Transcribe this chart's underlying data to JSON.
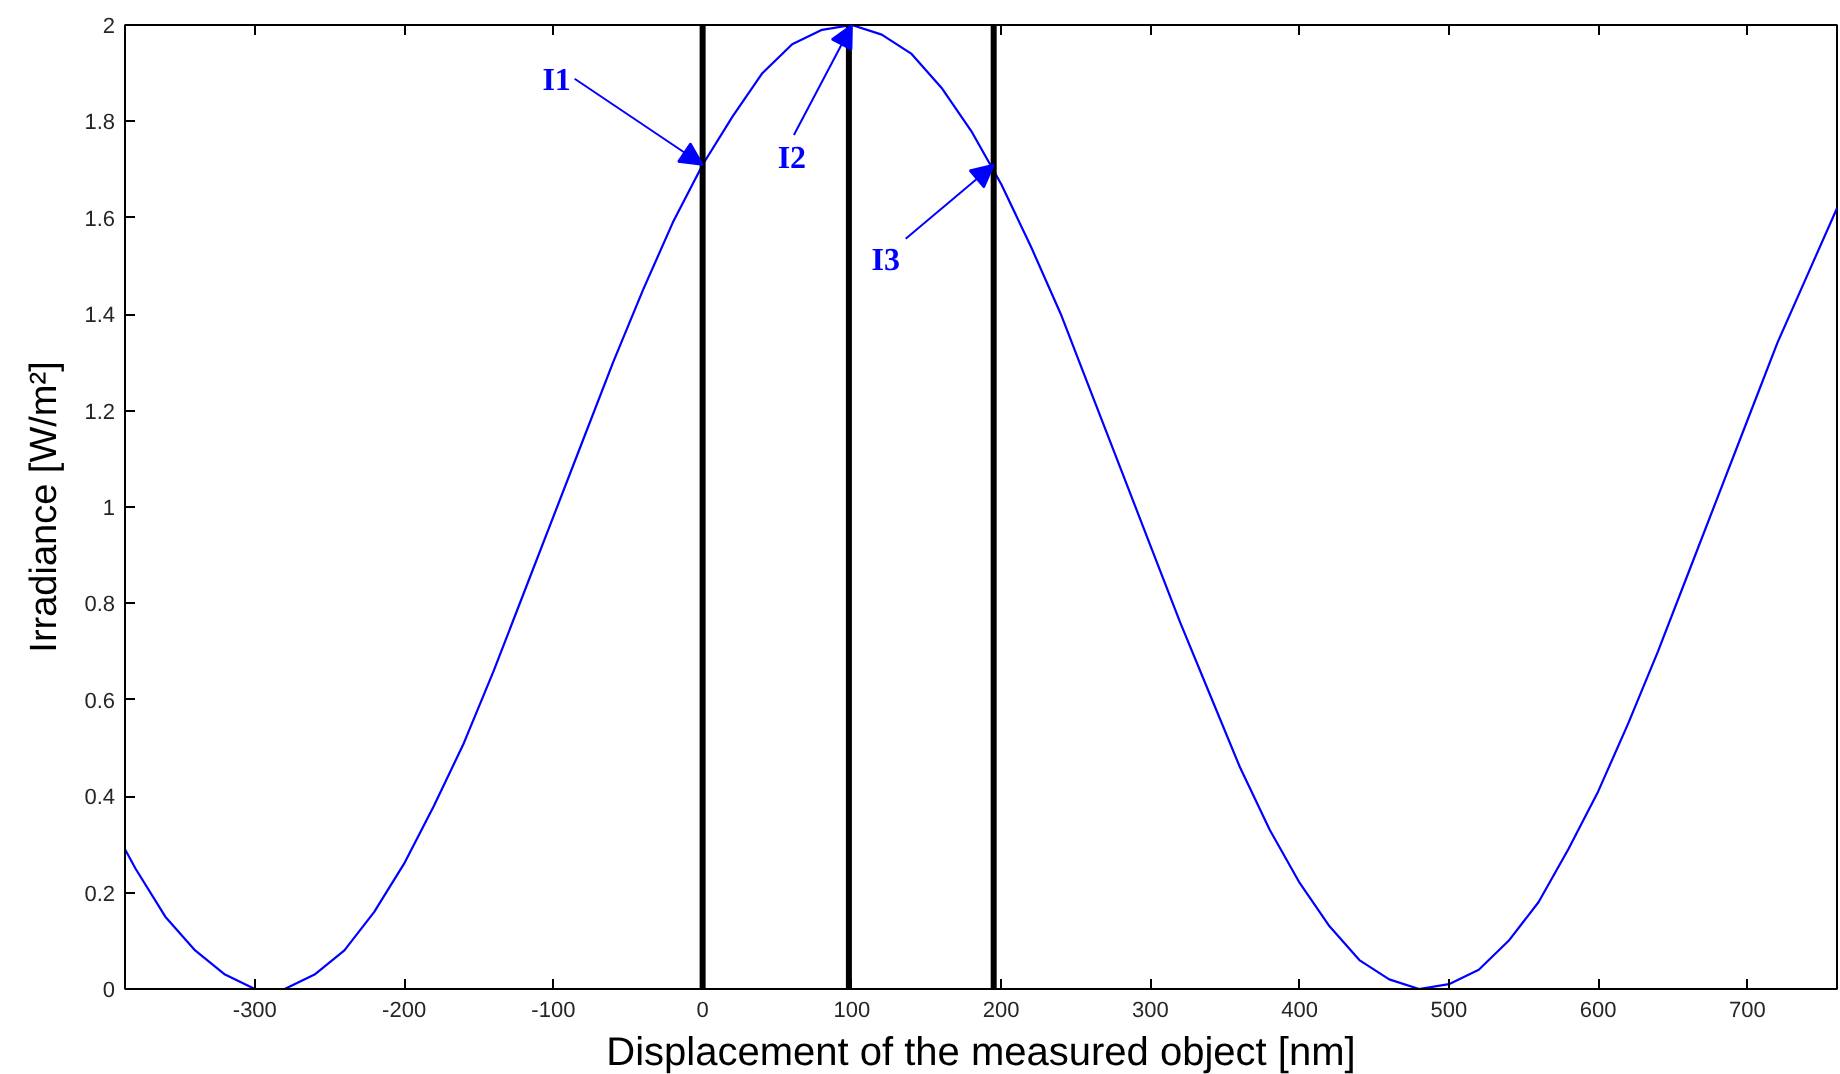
{
  "chart_data": {
    "type": "line",
    "xlabel": "Displacement of the measured object [nm]",
    "ylabel": "Irradiance [W/m²]",
    "x": [
      -387,
      -380,
      -360,
      -340,
      -320,
      -300,
      -280,
      -260,
      -240,
      -220,
      -200,
      -180,
      -160,
      -140,
      -120,
      -100,
      -80,
      -60,
      -40,
      -20,
      0,
      20,
      40,
      60,
      80,
      100,
      120,
      140,
      160,
      180,
      200,
      220,
      240,
      260,
      280,
      300,
      320,
      340,
      360,
      380,
      400,
      420,
      440,
      460,
      480,
      500,
      520,
      540,
      560,
      580,
      600,
      620,
      640,
      660,
      680,
      700,
      720,
      740,
      760
    ],
    "series": [
      {
        "color": "#0000ff",
        "values": [
          0.29,
          0.25,
          0.15,
          0.08,
          0.03,
          0.0,
          0.0,
          0.03,
          0.08,
          0.16,
          0.26,
          0.38,
          0.51,
          0.66,
          0.82,
          0.98,
          1.14,
          1.3,
          1.45,
          1.59,
          1.71,
          1.81,
          1.9,
          1.96,
          1.99,
          2.0,
          1.98,
          1.94,
          1.87,
          1.78,
          1.67,
          1.54,
          1.4,
          1.24,
          1.08,
          0.92,
          0.76,
          0.61,
          0.46,
          0.33,
          0.22,
          0.13,
          0.06,
          0.02,
          0.0,
          0.01,
          0.04,
          0.1,
          0.18,
          0.29,
          0.41,
          0.55,
          0.7,
          0.86,
          1.02,
          1.18,
          1.34,
          1.48,
          1.62
        ]
      }
    ],
    "xlim": [
      -387,
      760
    ],
    "ylim": [
      0,
      2
    ],
    "xticks": [
      -300,
      -200,
      -100,
      0,
      100,
      200,
      300,
      400,
      500,
      600,
      700
    ],
    "yticks": [
      0,
      0.2,
      0.4,
      0.6,
      0.8,
      1,
      1.2,
      1.4,
      1.6,
      1.8,
      2
    ],
    "grid": false,
    "marker": "none",
    "line_style": "solid",
    "ref_lines": [
      {
        "axis": "x",
        "value": 0,
        "color": "#000000"
      },
      {
        "axis": "x",
        "value": 98,
        "color": "#000000"
      },
      {
        "axis": "x",
        "value": 195,
        "color": "#000000"
      }
    ],
    "annotations": [
      {
        "text": "I1",
        "x": 0,
        "y": 1.71
      },
      {
        "text": "I2",
        "x": 100,
        "y": 2
      },
      {
        "text": "I3",
        "x": 195,
        "y": 1.71
      }
    ]
  }
}
